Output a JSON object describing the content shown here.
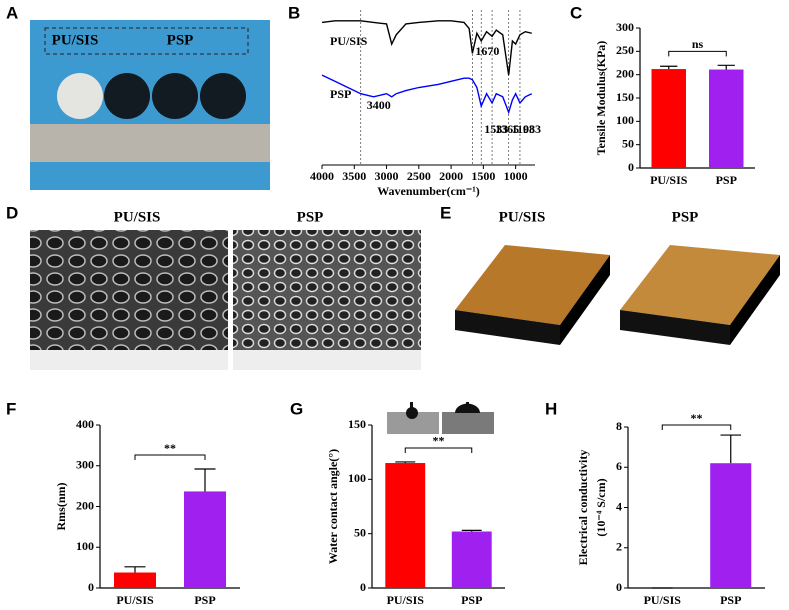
{
  "panel_labels": [
    "A",
    "B",
    "C",
    "D",
    "E",
    "F",
    "G",
    "H"
  ],
  "photo_a": {
    "labels": [
      "PU/SIS",
      "PSP"
    ]
  },
  "sem": {
    "titles": [
      "PU/SIS",
      "PSP"
    ]
  },
  "afm": {
    "titles": [
      "PU/SIS",
      "PSP"
    ]
  },
  "chart_data": [
    {
      "type": "line",
      "xlabel": "Wavenumber(cm⁻¹)",
      "x": [
        4000,
        3800,
        3600,
        3400,
        3200,
        3000,
        2920,
        2850,
        2700,
        2500,
        2200,
        2000,
        1800,
        1720,
        1670,
        1600,
        1533,
        1450,
        1365,
        1300,
        1200,
        1108,
        1050,
        1000,
        933,
        850,
        750
      ],
      "series": [
        {
          "name": "PU/SIS",
          "color": "#000000",
          "values": [
            92,
            93,
            93,
            93,
            92,
            91,
            78,
            84,
            91,
            92,
            93,
            93,
            92,
            88,
            72,
            85,
            80,
            86,
            83,
            87,
            84,
            58,
            80,
            78,
            84,
            86,
            85
          ]
        },
        {
          "name": "PSP",
          "color": "#0000ff",
          "values": [
            58,
            54,
            50,
            46,
            44,
            46,
            44,
            46,
            48,
            50,
            52,
            54,
            56,
            56,
            55,
            50,
            38,
            46,
            40,
            46,
            44,
            34,
            42,
            46,
            40,
            44,
            46
          ]
        }
      ],
      "peaks": [
        3400,
        1670,
        1533,
        1365,
        1108,
        933
      ],
      "xlim": [
        4000,
        700
      ],
      "xticks": [
        4000,
        3500,
        3000,
        2500,
        2000,
        1500,
        1000
      ],
      "ylim": [
        0,
        100
      ]
    },
    {
      "type": "bar",
      "ylabel": "Tensile Modulus(KPa)",
      "categories": [
        "PU/SIS",
        "PSP"
      ],
      "values": [
        212,
        211
      ],
      "errors": [
        6,
        9
      ],
      "colors": [
        "#ff0000",
        "#a020f0"
      ],
      "ylim": [
        0,
        300
      ],
      "yticks": [
        0,
        50,
        100,
        150,
        200,
        250,
        300
      ],
      "significance": "ns"
    },
    {
      "type": "bar",
      "ylabel": "Rms(nm)",
      "categories": [
        "PU/SIS",
        "PSP"
      ],
      "values": [
        38,
        237
      ],
      "errors": [
        14,
        55
      ],
      "colors": [
        "#ff0000",
        "#a020f0"
      ],
      "ylim": [
        0,
        400
      ],
      "yticks": [
        0,
        100,
        200,
        300,
        400
      ],
      "significance": "**"
    },
    {
      "type": "bar",
      "ylabel": "Water contact angle(°)",
      "categories": [
        "PU/SIS",
        "PSP"
      ],
      "values": [
        115,
        52
      ],
      "errors": [
        1,
        1
      ],
      "colors": [
        "#ff0000",
        "#a020f0"
      ],
      "ylim": [
        0,
        150
      ],
      "yticks": [
        0,
        50,
        100,
        150
      ],
      "significance": "**"
    },
    {
      "type": "bar",
      "ylabel": [
        "Electrical conductivity",
        "(10⁻⁴ S/cm)"
      ],
      "categories": [
        "PU/SIS",
        "PSP"
      ],
      "values": [
        0,
        6.2
      ],
      "errors": [
        0,
        1.4
      ],
      "colors": [
        "#ff0000",
        "#a020f0"
      ],
      "ylim": [
        0,
        8
      ],
      "yticks": [
        0,
        2,
        4,
        6,
        8
      ],
      "significance": "**"
    }
  ]
}
